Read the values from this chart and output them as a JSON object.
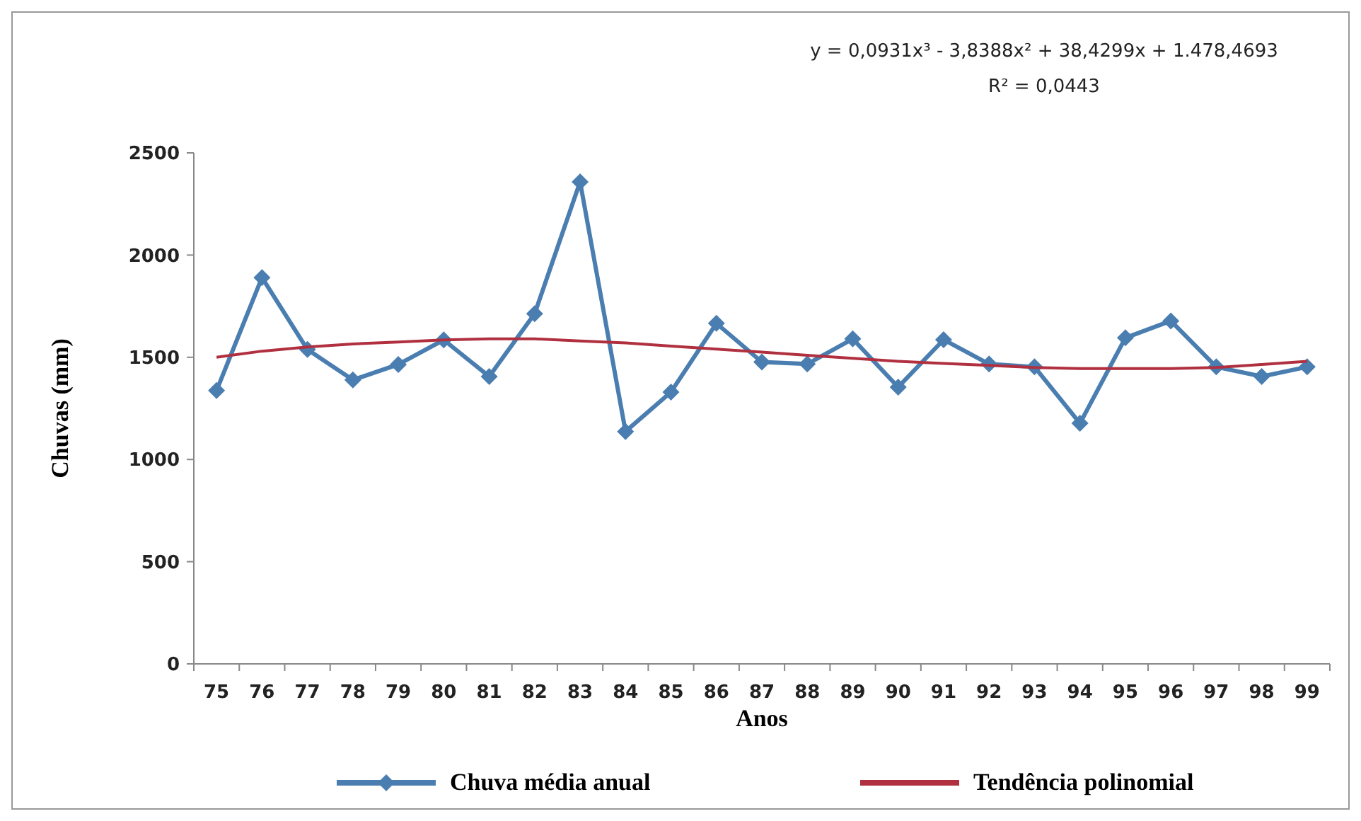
{
  "chart_data": {
    "type": "line",
    "xlabel": "Anos",
    "ylabel": "Chuvas (mm)",
    "categories": [
      "75",
      "76",
      "77",
      "78",
      "79",
      "80",
      "81",
      "82",
      "83",
      "84",
      "85",
      "86",
      "87",
      "88",
      "89",
      "90",
      "91",
      "92",
      "93",
      "94",
      "95",
      "96",
      "97",
      "98",
      "99"
    ],
    "series": [
      {
        "name": "Chuva média anual",
        "color": "#4a7eb0",
        "marker": "diamond",
        "values": [
          1337,
          1890,
          1538,
          1389,
          1465,
          1585,
          1406,
          1713,
          2358,
          1137,
          1330,
          1666,
          1477,
          1467,
          1590,
          1354,
          1586,
          1467,
          1453,
          1177,
          1595,
          1678,
          1453,
          1406,
          1453
        ]
      },
      {
        "name": "Tendência polinomial",
        "color": "#b03040",
        "marker": "none",
        "values": [
          1500,
          1530,
          1550,
          1565,
          1575,
          1585,
          1590,
          1590,
          1580,
          1570,
          1555,
          1540,
          1525,
          1510,
          1495,
          1480,
          1470,
          1460,
          1450,
          1445,
          1445,
          1445,
          1450,
          1465,
          1480
        ]
      }
    ],
    "ylim": [
      0,
      2500
    ],
    "yticks": [
      0,
      500,
      1000,
      1500,
      2000,
      2500
    ],
    "grid": false,
    "legend": "bottom",
    "annotations": [
      "y = 0,0931x³ - 3,8388x² + 38,4299x + 1.478,4693",
      "R² = 0,0443"
    ]
  }
}
